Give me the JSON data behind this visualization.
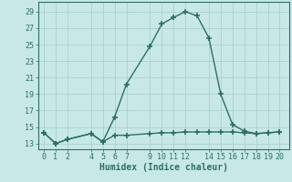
{
  "line1_x": [
    0,
    1,
    2,
    4,
    5,
    6,
    7,
    9,
    10,
    11,
    12,
    13,
    14,
    15,
    16,
    17,
    18,
    19,
    20
  ],
  "line1_y": [
    14.3,
    13.0,
    13.5,
    14.2,
    13.2,
    16.2,
    20.2,
    24.8,
    27.5,
    28.3,
    29.0,
    28.5,
    25.8,
    19.0,
    15.3,
    14.5,
    14.2,
    14.3,
    14.4
  ],
  "line2_x": [
    0,
    1,
    2,
    4,
    5,
    6,
    7,
    9,
    10,
    11,
    12,
    13,
    14,
    15,
    16,
    17,
    18,
    19,
    20
  ],
  "line2_y": [
    14.3,
    13.0,
    13.5,
    14.2,
    13.2,
    14.0,
    14.0,
    14.2,
    14.3,
    14.3,
    14.4,
    14.4,
    14.4,
    14.4,
    14.4,
    14.3,
    14.2,
    14.3,
    14.4
  ],
  "line_color": "#2e6e65",
  "bg_color": "#c8e8e8",
  "grid_color": "#aacfcf",
  "xlabel": "Humidex (Indice chaleur)",
  "xticks": [
    0,
    1,
    2,
    4,
    5,
    6,
    7,
    9,
    10,
    11,
    12,
    14,
    15,
    16,
    17,
    18,
    19,
    20
  ],
  "yticks": [
    13,
    15,
    17,
    19,
    21,
    23,
    25,
    27,
    29
  ],
  "ylim": [
    12.3,
    30.2
  ],
  "xlim": [
    -0.5,
    20.8
  ],
  "marker": "+",
  "markersize": 4,
  "markeredgewidth": 1.2,
  "linewidth": 1.0,
  "xlabel_fontsize": 7,
  "tick_fontsize": 6
}
